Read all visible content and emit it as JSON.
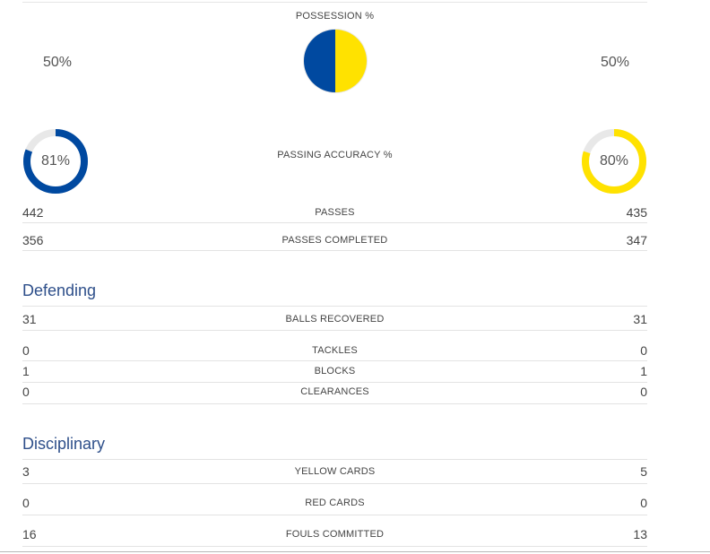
{
  "colors": {
    "home": "#0049a0",
    "away": "#ffe200",
    "track": "#e8e8e8",
    "section_title": "#2e4f8a"
  },
  "possession": {
    "label": "POSSESSION %",
    "home": "50%",
    "away": "50%",
    "home_value": 50,
    "away_value": 50
  },
  "passing_accuracy": {
    "label": "PASSING ACCURACY %",
    "home": "81%",
    "away": "80%",
    "home_value": 81,
    "away_value": 80
  },
  "passing_rows": [
    {
      "label": "PASSES",
      "home": "442",
      "away": "435"
    },
    {
      "label": "PASSES COMPLETED",
      "home": "356",
      "away": "347"
    }
  ],
  "defending": {
    "title": "Defending",
    "rows": [
      {
        "label": "BALLS RECOVERED",
        "home": "31",
        "away": "31"
      },
      {
        "label": "TACKLES",
        "home": "0",
        "away": "0"
      },
      {
        "label": "BLOCKS",
        "home": "1",
        "away": "1"
      },
      {
        "label": "CLEARANCES",
        "home": "0",
        "away": "0"
      }
    ]
  },
  "disciplinary": {
    "title": "Disciplinary",
    "rows": [
      {
        "label": "YELLOW CARDS",
        "home": "3",
        "away": "5"
      },
      {
        "label": "RED CARDS",
        "home": "0",
        "away": "0"
      },
      {
        "label": "FOULS COMMITTED",
        "home": "16",
        "away": "13"
      }
    ]
  }
}
